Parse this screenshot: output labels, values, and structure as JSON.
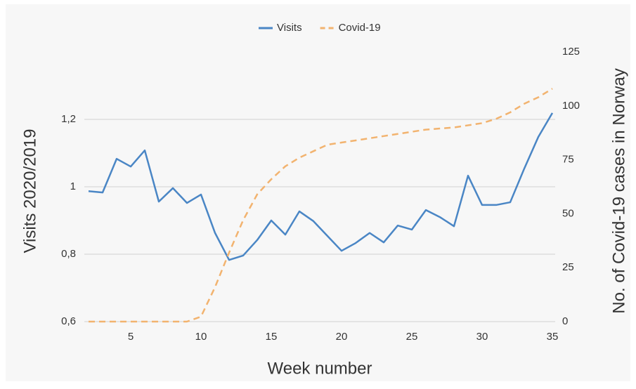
{
  "chart_data": {
    "type": "line",
    "x_label": "Week number",
    "y_label": "Visits 2020/2019",
    "y2_label": "No. of Covid-19 cases in Norway",
    "x": [
      2,
      3,
      4,
      5,
      6,
      7,
      8,
      9,
      10,
      11,
      12,
      13,
      14,
      15,
      16,
      17,
      18,
      19,
      20,
      21,
      22,
      23,
      24,
      25,
      26,
      27,
      28,
      29,
      30,
      31,
      32,
      33,
      34,
      35
    ],
    "series": [
      {
        "name": "Visits",
        "color": "#4a86c5",
        "dashed": false,
        "values": [
          0.987,
          0.983,
          1.083,
          1.06,
          1.108,
          0.956,
          0.996,
          0.952,
          0.977,
          0.863,
          0.783,
          0.796,
          0.842,
          0.9,
          0.858,
          0.927,
          0.898,
          0.854,
          0.81,
          0.833,
          0.863,
          0.835,
          0.885,
          0.873,
          0.931,
          0.91,
          0.883,
          1.033,
          0.946,
          0.946,
          0.954,
          1.054,
          1.148,
          1.219
        ]
      },
      {
        "name": "Covid-19",
        "color": "#f2b36f",
        "dashed": true,
        "axis": "y2",
        "values": [
          0,
          0,
          0,
          0,
          0,
          0,
          0,
          0,
          2.3,
          16,
          32,
          47,
          59,
          66,
          72,
          76,
          79,
          82,
          83,
          84,
          85,
          86,
          87,
          88,
          89,
          89.5,
          90,
          91,
          92,
          94,
          97,
          101,
          104,
          108
        ]
      }
    ],
    "xlim": [
      1.7,
      35.2
    ],
    "xticks": [
      5,
      10,
      15,
      20,
      25,
      30,
      35
    ],
    "ylim": [
      0.6,
      1.4
    ],
    "yticks": [
      {
        "value": 0.6,
        "label": "0,6"
      },
      {
        "value": 0.8,
        "label": "0,8"
      },
      1,
      {
        "value": 1.2,
        "label": "1,2"
      }
    ],
    "y2lim": [
      0,
      125
    ],
    "y2ticks": [
      0,
      25,
      50,
      75,
      100,
      125
    ],
    "grid": true,
    "legend": "top"
  }
}
